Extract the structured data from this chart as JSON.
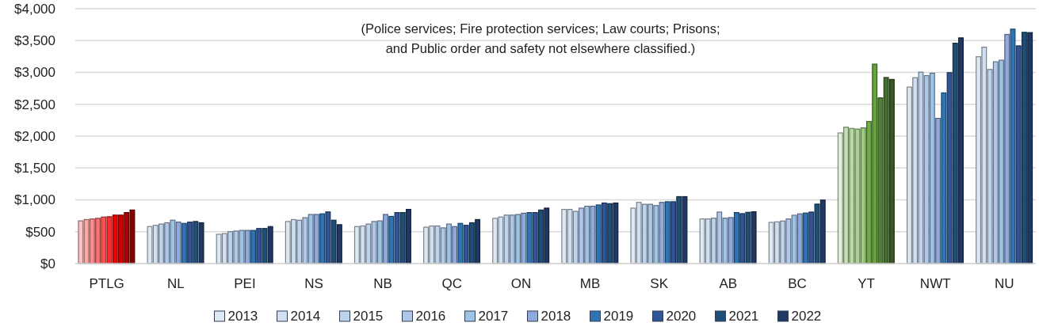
{
  "chart_data": {
    "type": "bar",
    "categories": [
      "PTLG",
      "NL",
      "PEI",
      "NS",
      "NB",
      "QC",
      "ON",
      "MB",
      "SK",
      "AB",
      "BC",
      "YT",
      "NWT",
      "NU"
    ],
    "ylim": [
      0,
      4000
    ],
    "yticks": [
      {
        "value": 0,
        "label": "$0"
      },
      {
        "value": 500,
        "label": "$500"
      },
      {
        "value": 1000,
        "label": "$1,000"
      },
      {
        "value": 1500,
        "label": "$1,500"
      },
      {
        "value": 2000,
        "label": "$2,000"
      },
      {
        "value": 2500,
        "label": "$2,500"
      },
      {
        "value": 3000,
        "label": "$3,000"
      },
      {
        "value": 3500,
        "label": "$3,500"
      },
      {
        "value": 4000,
        "label": "$4,000"
      }
    ],
    "grid": "y",
    "legend": "bottom",
    "annotations": [
      "(Police services; Fire protection services; Law courts; Prisons;",
      "and Public order and safety not elsewhere classified.)"
    ],
    "series": [
      {
        "name": "2013",
        "color": "#dce9f5",
        "colors": [
          "#ffc0c0",
          "#dce9f5",
          "#dce9f5",
          "#dce9f5",
          "#dce9f5",
          "#dce9f5",
          "#dce9f5",
          "#dce9f5",
          "#dce9f5",
          "#dce9f5",
          "#dce9f5",
          "#e2f0d9",
          "#dce9f5",
          "#dce9f5"
        ],
        "values": [
          670,
          580,
          460,
          660,
          580,
          570,
          710,
          850,
          870,
          700,
          646,
          2050,
          2770,
          3246
        ]
      },
      {
        "name": "2014",
        "color": "#d0e0f2",
        "colors": [
          "#ffa6a6",
          "#d0e0f2",
          "#d0e0f2",
          "#d0e0f2",
          "#d0e0f2",
          "#d0e0f2",
          "#d0e0f2",
          "#d0e0f2",
          "#d0e0f2",
          "#d0e0f2",
          "#d0e0f2",
          "#c5e0b4",
          "#d0e0f2",
          "#d0e0f2"
        ],
        "values": [
          690,
          600,
          470,
          690,
          590,
          590,
          730,
          850,
          960,
          700,
          654,
          2140,
          2917,
          3396
        ]
      },
      {
        "name": "2015",
        "color": "#bdd4ee",
        "colors": [
          "#ff8c8c",
          "#bdd4ee",
          "#bdd4ee",
          "#bdd4ee",
          "#bdd4ee",
          "#bdd4ee",
          "#bdd4ee",
          "#bdd4ee",
          "#bdd4ee",
          "#bdd4ee",
          "#bdd4ee",
          "#b9dba1",
          "#bdd4ee",
          "#bdd4ee"
        ],
        "values": [
          700,
          620,
          500,
          680,
          620,
          590,
          760,
          820,
          930,
          712,
          667,
          2120,
          3004,
          3046
        ]
      },
      {
        "name": "2016",
        "color": "#afc7e9",
        "colors": [
          "#ff7070",
          "#afc7e9",
          "#afc7e9",
          "#afc7e9",
          "#afc7e9",
          "#afc7e9",
          "#afc7e9",
          "#afc7e9",
          "#afc7e9",
          "#afc7e9",
          "#afc7e9",
          "#acd391",
          "#afc7e9",
          "#afc7e9"
        ],
        "values": [
          710,
          640,
          510,
          720,
          660,
          560,
          760,
          870,
          930,
          808,
          700,
          2110,
          2950,
          3167
        ]
      },
      {
        "name": "2017",
        "color": "#9dc3e6",
        "colors": [
          "#ff5050",
          "#9dc3e6",
          "#9dc3e6",
          "#9dc3e6",
          "#9dc3e6",
          "#9dc3e6",
          "#9dc3e6",
          "#9dc3e6",
          "#9dc3e6",
          "#9dc3e6",
          "#9dc3e6",
          "#9ccb7c",
          "#9dc3e6",
          "#9dc3e6"
        ],
        "values": [
          730,
          680,
          520,
          770,
          670,
          620,
          770,
          900,
          910,
          712,
          758,
          2130,
          2988,
          3192
        ]
      },
      {
        "name": "2018",
        "color": "#8faadc",
        "colors": [
          "#ff2a2a",
          "#8faadc",
          "#8faadc",
          "#8faadc",
          "#8faadc",
          "#8faadc",
          "#8faadc",
          "#8faadc",
          "#8faadc",
          "#8faadc",
          "#8faadc",
          "#70ad47",
          "#8faadc",
          "#8faadc"
        ],
        "values": [
          735,
          650,
          520,
          770,
          770,
          580,
          790,
          900,
          960,
          721,
          779,
          2230,
          2279,
          3596
        ]
      },
      {
        "name": "2019",
        "color": "#2e75b6",
        "colors": [
          "#ee0000",
          "#2e75b6",
          "#2e75b6",
          "#2e75b6",
          "#2e75b6",
          "#2e75b6",
          "#2e75b6",
          "#2e75b6",
          "#2e75b6",
          "#2e75b6",
          "#2e75b6",
          "#65a33d",
          "#2e75b6",
          "#2e75b6"
        ],
        "values": [
          760,
          630,
          520,
          780,
          740,
          630,
          800,
          920,
          970,
          800,
          792,
          3130,
          2679,
          3679
        ]
      },
      {
        "name": "2020",
        "color": "#2f5597",
        "colors": [
          "#d40000",
          "#2f5597",
          "#2f5597",
          "#2f5597",
          "#2f5597",
          "#2f5597",
          "#2f5597",
          "#2f5597",
          "#2f5597",
          "#2f5597",
          "#2f5597",
          "#548235",
          "#2f5597",
          "#2f5597"
        ],
        "values": [
          760,
          650,
          550,
          810,
          800,
          600,
          800,
          950,
          970,
          783,
          808,
          2600,
          2996,
          3417
        ]
      },
      {
        "name": "2021",
        "color": "#1f4e79",
        "colors": [
          "#b00000",
          "#1f4e79",
          "#1f4e79",
          "#1f4e79",
          "#1f4e79",
          "#1f4e79",
          "#1f4e79",
          "#1f4e79",
          "#1f4e79",
          "#1f4e79",
          "#1f4e79",
          "#446c2c",
          "#1f4e79",
          "#1f4e79"
        ],
        "values": [
          800,
          660,
          550,
          680,
          800,
          640,
          840,
          940,
          1050,
          804,
          933,
          2920,
          3458,
          3629
        ]
      },
      {
        "name": "2022",
        "color": "#203864",
        "colors": [
          "#850000",
          "#203864",
          "#203864",
          "#203864",
          "#203864",
          "#203864",
          "#203864",
          "#203864",
          "#203864",
          "#203864",
          "#203864",
          "#385723",
          "#203864",
          "#203864"
        ],
        "values": [
          840,
          640,
          580,
          610,
          850,
          690,
          870,
          950,
          1050,
          812,
          996,
          2890,
          3542,
          3625
        ]
      }
    ]
  }
}
